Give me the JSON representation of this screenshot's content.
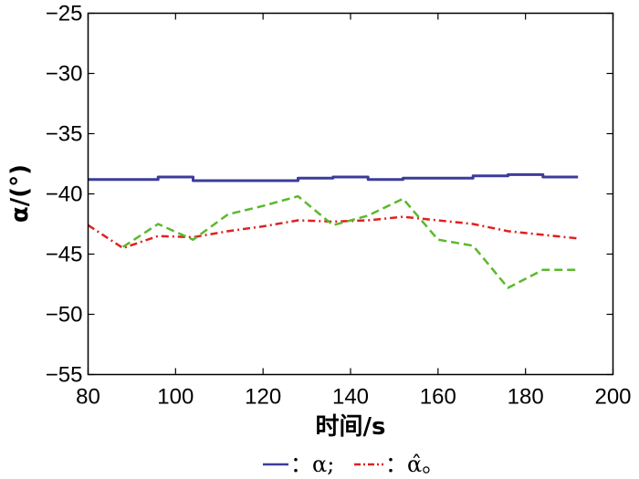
{
  "chart_data": {
    "type": "line",
    "xlabel": "时间/s",
    "ylabel": "α/(°)",
    "xlim": [
      80,
      200
    ],
    "ylim": [
      -55,
      -25
    ],
    "xticks": [
      80,
      100,
      120,
      140,
      160,
      180,
      200
    ],
    "yticks": [
      -25,
      -30,
      -35,
      -40,
      -45,
      -50,
      -55
    ],
    "grid": false,
    "legend_position": "bottom",
    "series": [
      {
        "name": "α",
        "legend_label": "：α;",
        "color": "#3c3c9a",
        "style": "solid",
        "x": [
          80,
          96,
          96,
          104,
          104,
          112,
          112,
          128,
          128,
          136,
          136,
          144,
          144,
          152,
          152,
          160,
          160,
          168,
          168,
          176,
          176,
          184,
          184,
          192
        ],
        "y": [
          -38.8,
          -38.8,
          -38.6,
          -38.6,
          -38.9,
          -38.9,
          -38.9,
          -38.9,
          -38.7,
          -38.7,
          -38.6,
          -38.6,
          -38.8,
          -38.8,
          -38.7,
          -38.7,
          -38.7,
          -38.7,
          -38.5,
          -38.5,
          -38.4,
          -38.4,
          -38.6,
          -38.6
        ]
      },
      {
        "name": "α̂",
        "legend_label": "：α̂。",
        "color": "#e02020",
        "style": "dash-dot",
        "x": [
          80,
          88,
          96,
          104,
          112,
          120,
          128,
          136,
          144,
          152,
          160,
          168,
          176,
          184,
          192
        ],
        "y": [
          -42.6,
          -44.5,
          -43.5,
          -43.6,
          -43.1,
          -42.7,
          -42.2,
          -42.3,
          -42.2,
          -41.9,
          -42.2,
          -42.5,
          -43.1,
          -43.4,
          -43.7
        ]
      },
      {
        "color": "#5cb82e",
        "style": "dashed",
        "x": [
          88,
          96,
          104,
          112,
          120,
          128,
          136,
          144,
          152,
          160,
          168,
          176,
          184,
          192
        ],
        "y": [
          -44.4,
          -42.5,
          -43.8,
          -41.7,
          -41.0,
          -40.2,
          -42.6,
          -41.8,
          -40.4,
          -43.8,
          -44.3,
          -47.8,
          -46.3,
          -46.3
        ]
      }
    ]
  }
}
